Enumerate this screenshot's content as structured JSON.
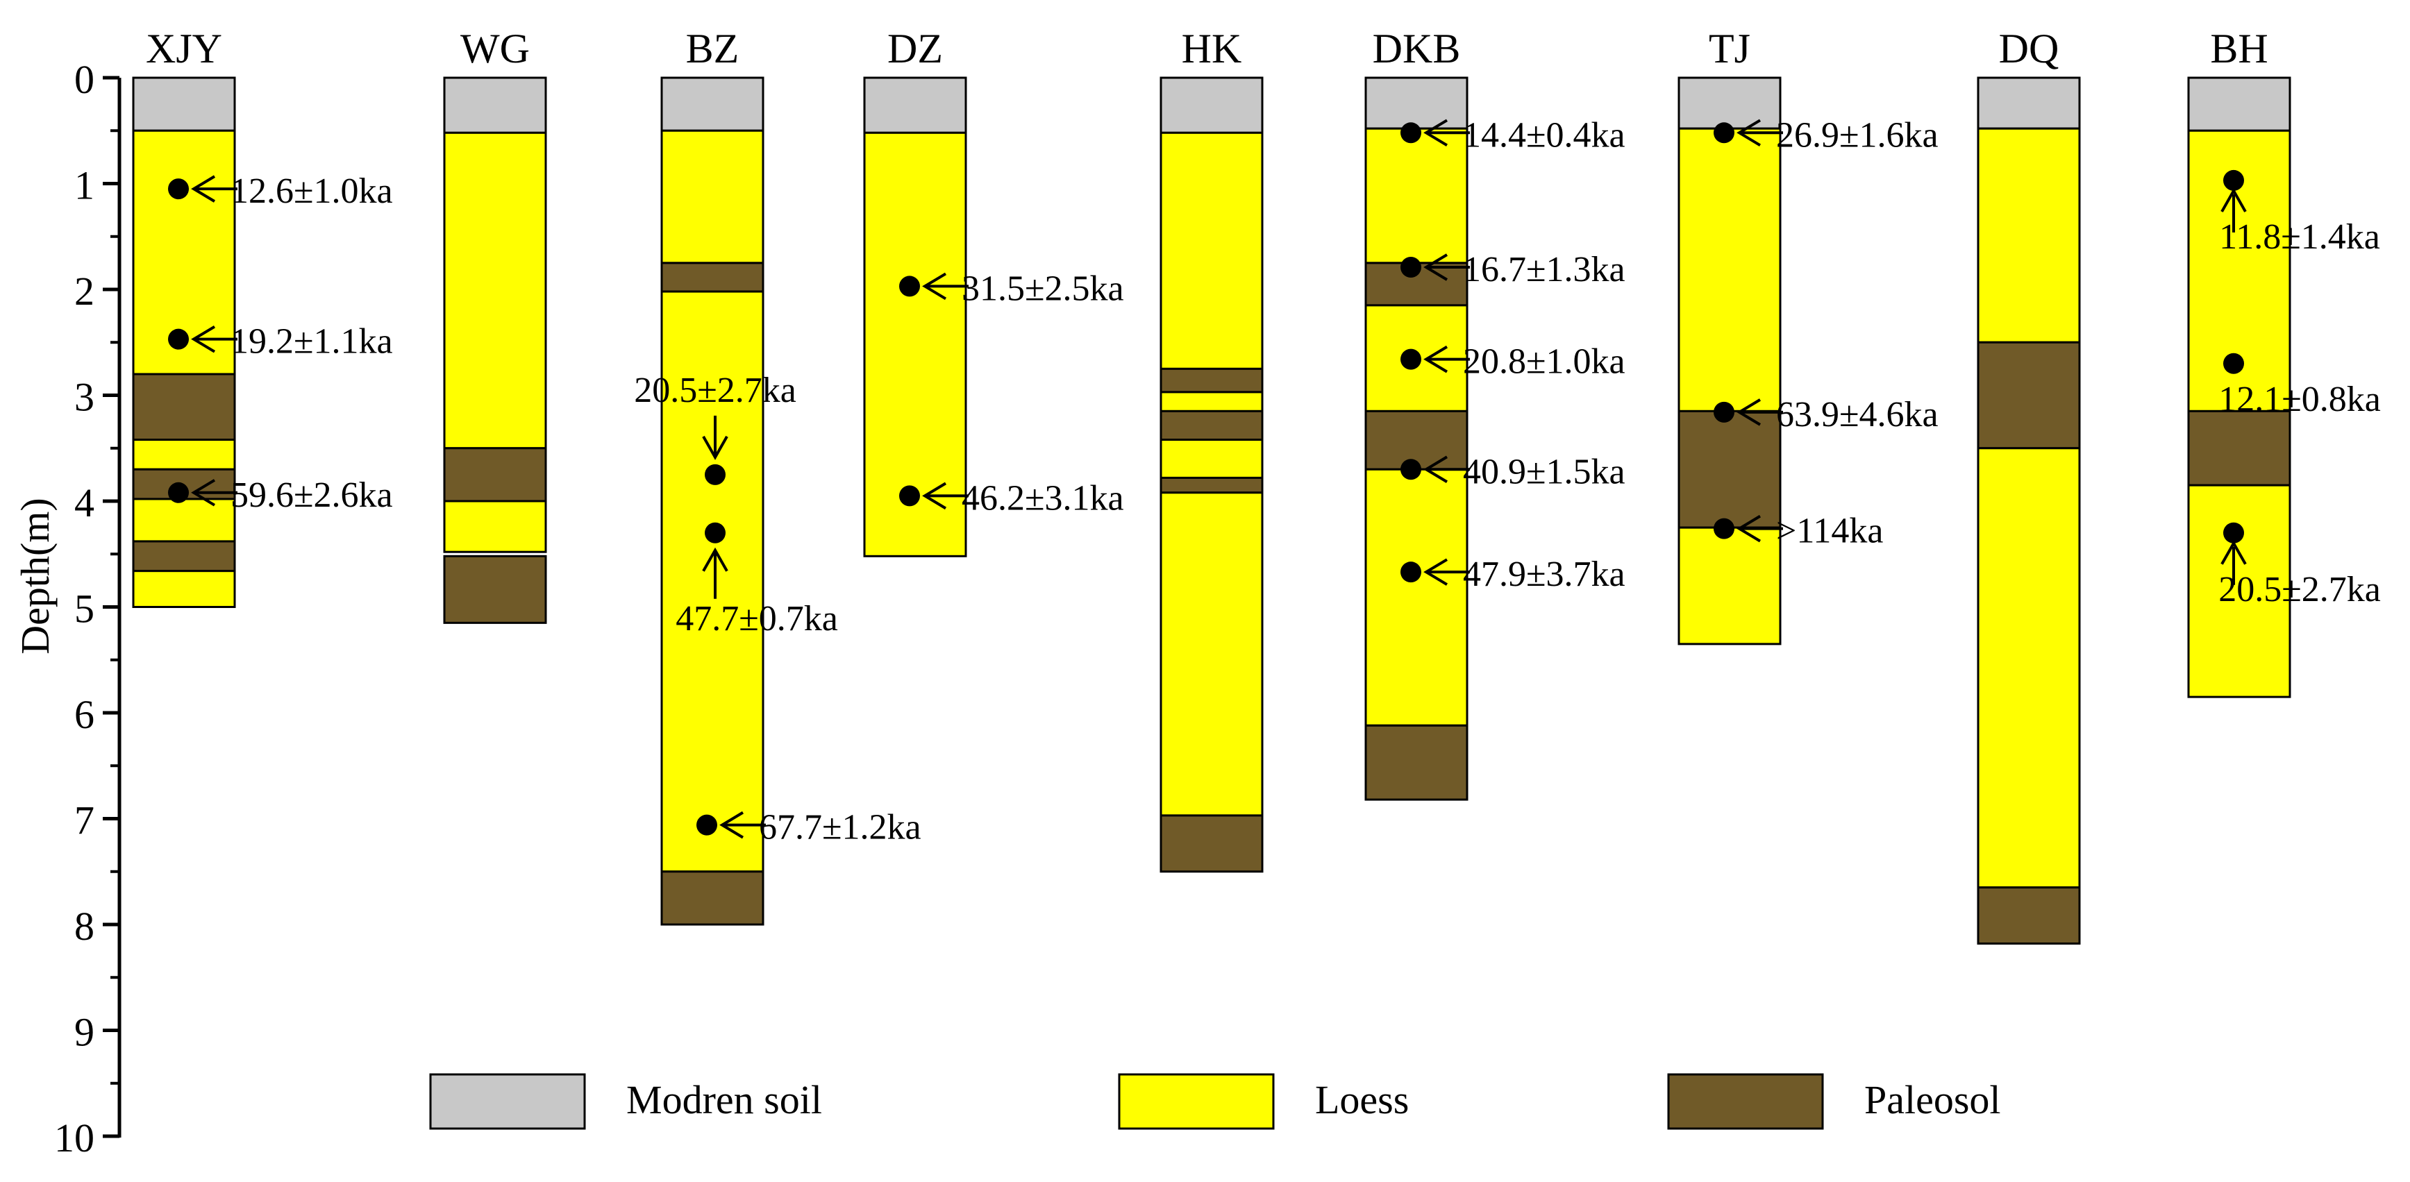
{
  "axis": {
    "label": "Depth(m)",
    "min": 0,
    "max": 10,
    "ticks": [
      "0",
      "1",
      "2",
      "3",
      "4",
      "5",
      "6",
      "7",
      "8",
      "9",
      "10"
    ]
  },
  "colors": {
    "modern_soil": "#c8c8c8",
    "loess": "#ffff00",
    "paleosol": "#705a28",
    "outline": "#000000"
  },
  "legend": [
    {
      "key": "modern_soil",
      "label": "Modren soil"
    },
    {
      "key": "loess",
      "label": "Loess"
    },
    {
      "key": "paleosol",
      "label": "Paleosol"
    }
  ],
  "sections": [
    {
      "name": "XJY",
      "layers": [
        {
          "type": "modern_soil",
          "top": 0,
          "bottom": 0.5
        },
        {
          "type": "loess",
          "top": 0.5,
          "bottom": 2.8
        },
        {
          "type": "paleosol",
          "top": 2.8,
          "bottom": 3.42
        },
        {
          "type": "loess",
          "top": 3.42,
          "bottom": 3.7
        },
        {
          "type": "paleosol",
          "top": 3.7,
          "bottom": 3.98
        },
        {
          "type": "loess",
          "top": 3.98,
          "bottom": 4.38
        },
        {
          "type": "paleosol",
          "top": 4.38,
          "bottom": 4.66
        },
        {
          "type": "loess",
          "top": 4.66,
          "bottom": 5.0
        }
      ],
      "samples": [
        {
          "depth": 1.05,
          "label": "12.6±1.0ka",
          "style": "right"
        },
        {
          "depth": 2.47,
          "label": "19.2±1.1ka",
          "style": "right"
        },
        {
          "depth": 3.92,
          "label": "59.6±2.6ka",
          "style": "right"
        }
      ]
    },
    {
      "name": "WG",
      "layers": [
        {
          "type": "modern_soil",
          "top": 0,
          "bottom": 0.52
        },
        {
          "type": "loess",
          "top": 0.52,
          "bottom": 3.5
        },
        {
          "type": "paleosol",
          "top": 3.5,
          "bottom": 4.0
        },
        {
          "type": "loess",
          "top": 4.0,
          "bottom": 4.48
        },
        {
          "type": "paleosol",
          "top": 4.52,
          "bottom": 5.15
        }
      ],
      "samples": []
    },
    {
      "name": "BZ",
      "layers": [
        {
          "type": "modern_soil",
          "top": 0,
          "bottom": 0.5
        },
        {
          "type": "loess",
          "top": 0.5,
          "bottom": 1.75
        },
        {
          "type": "paleosol",
          "top": 1.75,
          "bottom": 2.02
        },
        {
          "type": "loess",
          "top": 2.02,
          "bottom": 7.5
        },
        {
          "type": "paleosol",
          "top": 7.5,
          "bottom": 8.0
        }
      ],
      "samples": [
        {
          "depth": 3.75,
          "label": "20.5±2.7ka",
          "style": "above"
        },
        {
          "depth": 4.3,
          "label": "47.7±0.7ka",
          "style": "below"
        },
        {
          "depth": 7.06,
          "label": "67.7±1.2ka",
          "style": "right"
        }
      ]
    },
    {
      "name": "DZ",
      "layers": [
        {
          "type": "modern_soil",
          "top": 0,
          "bottom": 0.52
        },
        {
          "type": "loess",
          "top": 0.52,
          "bottom": 4.52
        }
      ],
      "samples": [
        {
          "depth": 1.97,
          "label": "31.5±2.5ka",
          "style": "right"
        },
        {
          "depth": 3.95,
          "label": "46.2±3.1ka",
          "style": "right"
        }
      ]
    },
    {
      "name": "HK",
      "layers": [
        {
          "type": "modern_soil",
          "top": 0,
          "bottom": 0.52
        },
        {
          "type": "loess",
          "top": 0.52,
          "bottom": 2.75
        },
        {
          "type": "paleosol",
          "top": 2.75,
          "bottom": 2.97
        },
        {
          "type": "loess",
          "top": 2.97,
          "bottom": 3.15
        },
        {
          "type": "paleosol",
          "top": 3.15,
          "bottom": 3.42
        },
        {
          "type": "loess",
          "top": 3.42,
          "bottom": 3.78
        },
        {
          "type": "paleosol",
          "top": 3.78,
          "bottom": 3.92
        },
        {
          "type": "loess",
          "top": 3.92,
          "bottom": 6.97
        },
        {
          "type": "paleosol",
          "top": 6.97,
          "bottom": 7.5
        }
      ],
      "samples": []
    },
    {
      "name": "DKB",
      "layers": [
        {
          "type": "modern_soil",
          "top": 0,
          "bottom": 0.48
        },
        {
          "type": "loess",
          "top": 0.48,
          "bottom": 1.75
        },
        {
          "type": "paleosol",
          "top": 1.75,
          "bottom": 2.15
        },
        {
          "type": "loess",
          "top": 2.15,
          "bottom": 3.15
        },
        {
          "type": "paleosol",
          "top": 3.15,
          "bottom": 3.7
        },
        {
          "type": "loess",
          "top": 3.7,
          "bottom": 6.12
        },
        {
          "type": "paleosol",
          "top": 6.12,
          "bottom": 6.82
        }
      ],
      "samples": [
        {
          "depth": 0.52,
          "label": "14.4±0.4ka",
          "style": "right"
        },
        {
          "depth": 1.79,
          "label": "16.7±1.3ka",
          "style": "right"
        },
        {
          "depth": 2.66,
          "label": "20.8±1.0ka",
          "style": "right"
        },
        {
          "depth": 3.7,
          "label": "40.9±1.5ka",
          "style": "right"
        },
        {
          "depth": 4.67,
          "label": "47.9±3.7ka",
          "style": "right"
        }
      ]
    },
    {
      "name": "TJ",
      "layers": [
        {
          "type": "modern_soil",
          "top": 0,
          "bottom": 0.48
        },
        {
          "type": "loess",
          "top": 0.48,
          "bottom": 3.15
        },
        {
          "type": "paleosol",
          "top": 3.15,
          "bottom": 4.25
        },
        {
          "type": "loess",
          "top": 4.25,
          "bottom": 5.35
        }
      ],
      "samples": [
        {
          "depth": 0.52,
          "label": "26.9±1.6ka",
          "style": "right"
        },
        {
          "depth": 3.16,
          "label": "63.9±4.6ka",
          "style": "right"
        },
        {
          "depth": 4.26,
          "label": ">114ka",
          "style": "right"
        }
      ]
    },
    {
      "name": "DQ",
      "layers": [
        {
          "type": "modern_soil",
          "top": 0,
          "bottom": 0.48
        },
        {
          "type": "loess",
          "top": 0.48,
          "bottom": 2.5
        },
        {
          "type": "paleosol",
          "top": 2.5,
          "bottom": 3.5
        },
        {
          "type": "loess",
          "top": 3.5,
          "bottom": 7.65
        },
        {
          "type": "paleosol",
          "top": 7.65,
          "bottom": 8.18
        }
      ],
      "samples": []
    },
    {
      "name": "BH",
      "layers": [
        {
          "type": "modern_soil",
          "top": 0,
          "bottom": 0.5
        },
        {
          "type": "loess",
          "top": 0.5,
          "bottom": 3.15
        },
        {
          "type": "paleosol",
          "top": 3.15,
          "bottom": 3.85
        },
        {
          "type": "loess",
          "top": 3.85,
          "bottom": 5.85
        }
      ],
      "samples": [
        {
          "depth": 0.97,
          "label": "11.8±1.4ka",
          "style": "up_below"
        },
        {
          "depth": 2.7,
          "label": "12.1±0.8ka",
          "style": "dot_below"
        },
        {
          "depth": 4.3,
          "label": "20.5±2.7ka",
          "style": "up_below"
        }
      ]
    }
  ]
}
